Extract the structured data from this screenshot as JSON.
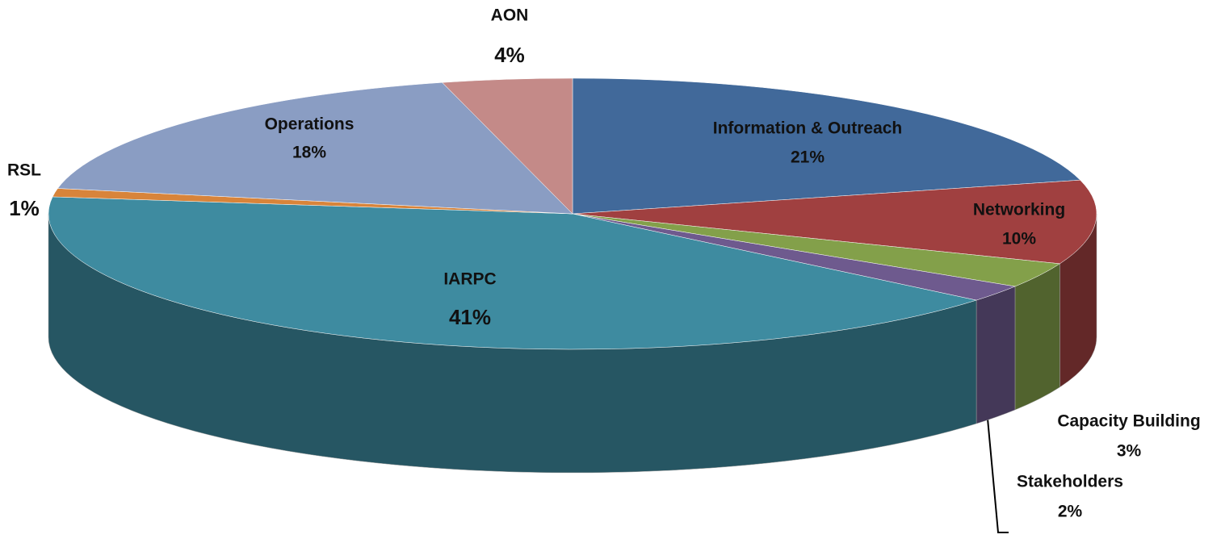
{
  "chart_data": {
    "type": "pie",
    "categories": [
      "Information & Outreach",
      "Networking",
      "Capacity Building",
      "Stakeholders",
      "IARPC",
      "RSL",
      "Operations",
      "AON"
    ],
    "values": [
      21,
      10,
      3,
      2,
      41,
      1,
      18,
      4
    ],
    "value_labels": [
      "21%",
      "10%",
      "3%",
      "2%",
      "41%",
      "1%",
      "18%",
      "4%"
    ],
    "colors": [
      "#41699a",
      "#a04040",
      "#83a04a",
      "#6e5a8e",
      "#3e8ba0",
      "#d8843a",
      "#8a9dc3",
      "#c48a88"
    ]
  }
}
